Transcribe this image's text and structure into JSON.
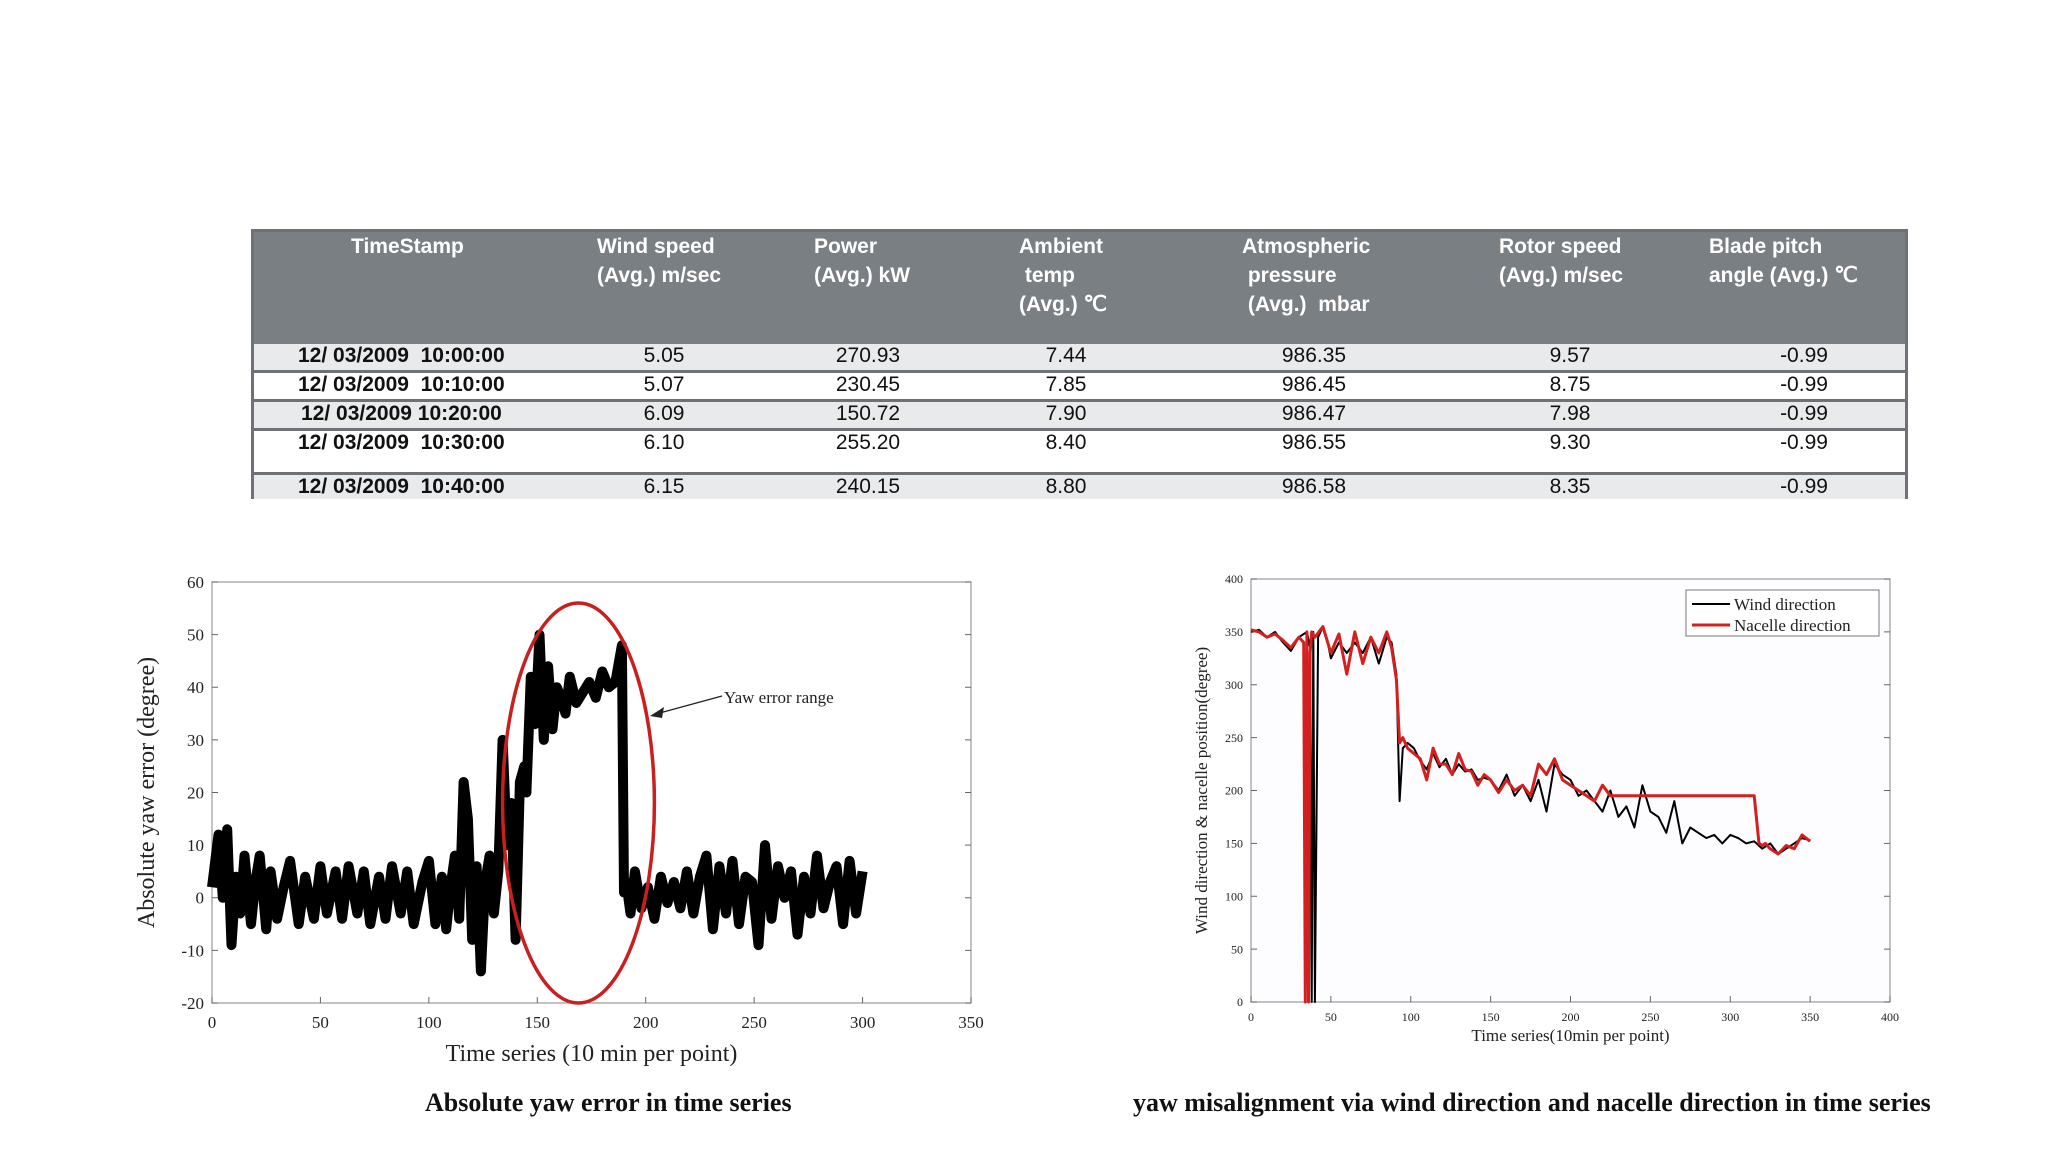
{
  "table": {
    "headers": [
      "TimeStamp",
      "Wind speed\n(Avg.) m/sec",
      "Power\n(Avg.) kW",
      "Ambient\n temp\n(Avg.) ℃",
      "Atmospheric\n pressure\n (Avg.)  mbar",
      "Rotor speed\n(Avg.) m/sec",
      "Blade pitch\nangle (Avg.) ℃"
    ],
    "rows": [
      [
        "12/ 03/2009  10:00:00",
        "5.05",
        "270.93",
        "7.44",
        "986.35",
        "9.57",
        "-0.99"
      ],
      [
        "12/ 03/2009  10:10:00",
        "5.07",
        "230.45",
        "7.85",
        "986.45",
        "8.75",
        "-0.99"
      ],
      [
        "12/ 03/2009 10:20:00",
        "6.09",
        "150.72",
        "7.90",
        "986.47",
        "7.98",
        "-0.99"
      ],
      [
        "12/ 03/2009  10:30:00",
        "6.10",
        "255.20",
        "8.40",
        "986.55",
        "9.30",
        "-0.99"
      ],
      [
        "12/ 03/2009  10:40:00",
        "6.15",
        "240.15",
        "8.80",
        "986.58",
        "8.35",
        "-0.99"
      ]
    ]
  },
  "chart_data": [
    {
      "type": "line",
      "title": "Absolute yaw error in time series",
      "xlabel": "Time series (10 min per point)",
      "ylabel": "Absolute yaw error (degree)",
      "xlim": [
        0,
        350
      ],
      "ylim": [
        -20,
        60
      ],
      "xticks": [
        "0",
        "50",
        "100",
        "150",
        "200",
        "250",
        "300",
        "350"
      ],
      "yticks": [
        "-20",
        "-10",
        "0",
        "10",
        "20",
        "30",
        "40",
        "50",
        "60"
      ],
      "annotation": "Yaw error range",
      "highlight_ellipse": {
        "x_center": 169,
        "y_center": 18,
        "x_radius": 35,
        "y_radius": 38
      },
      "series": [
        {
          "name": "Absolute yaw error",
          "color": "#000000",
          "x": [
            0,
            3,
            5,
            7,
            9,
            11,
            13,
            15,
            18,
            20,
            22,
            25,
            27,
            30,
            33,
            36,
            40,
            43,
            47,
            50,
            53,
            57,
            60,
            63,
            67,
            70,
            73,
            77,
            80,
            83,
            87,
            90,
            93,
            97,
            100,
            103,
            106,
            108,
            110,
            112,
            114,
            116,
            118,
            120,
            122,
            124,
            126,
            128,
            130,
            132,
            134,
            136,
            138,
            140,
            142,
            144,
            145,
            147,
            149,
            151,
            153,
            155,
            157,
            159,
            161,
            163,
            165,
            168,
            171,
            174,
            177,
            180,
            183,
            186,
            189,
            190,
            191,
            193,
            195,
            198,
            201,
            204,
            207,
            210,
            213,
            216,
            219,
            222,
            225,
            228,
            231,
            234,
            237,
            240,
            243,
            246,
            249,
            252,
            255,
            258,
            261,
            264,
            267,
            270,
            273,
            276,
            279,
            282,
            285,
            288,
            291,
            294,
            297,
            300
          ],
          "y": [
            2,
            12,
            0,
            13,
            -9,
            4,
            -3,
            8,
            -5,
            3,
            8,
            -6,
            5,
            -4,
            2,
            7,
            -5,
            4,
            -4,
            6,
            -3,
            5,
            -4,
            6,
            -3,
            5,
            -5,
            4,
            -4,
            6,
            -3,
            5,
            -5,
            3,
            7,
            -5,
            4,
            -6,
            2,
            8,
            -4,
            22,
            15,
            -8,
            6,
            -14,
            3,
            8,
            -3,
            5,
            30,
            10,
            18,
            -8,
            22,
            25,
            20,
            42,
            33,
            50,
            30,
            44,
            32,
            40,
            38,
            35,
            42,
            37,
            39,
            41,
            38,
            43,
            40,
            41,
            48,
            1,
            3,
            -3,
            5,
            -2,
            2,
            -4,
            4,
            -1,
            3,
            -2,
            5,
            -3,
            4,
            8,
            -6,
            6,
            -3,
            7,
            -5,
            4,
            3,
            -9,
            10,
            -4,
            6,
            0,
            5,
            -7,
            4,
            -3,
            8,
            -2,
            3,
            6,
            -5,
            7,
            -3,
            5
          ]
        }
      ]
    },
    {
      "type": "line",
      "title": "yaw misalignment via wind direction and nacelle direction in time series",
      "xlabel": "Time series(10min per point)",
      "ylabel": "Wind direction & nacelle position(degree)",
      "xlim": [
        0,
        400
      ],
      "ylim": [
        0,
        400
      ],
      "xticks": [
        "0",
        "50",
        "100",
        "150",
        "200",
        "250",
        "300",
        "350",
        "400"
      ],
      "yticks": [
        "0",
        "50",
        "100",
        "150",
        "200",
        "250",
        "300",
        "350",
        "400"
      ],
      "legend_position": "top-right",
      "series": [
        {
          "name": "Wind direction",
          "color": "#000000",
          "x": [
            0,
            5,
            10,
            15,
            20,
            25,
            30,
            35,
            37,
            38,
            39,
            40,
            42,
            45,
            48,
            50,
            55,
            60,
            65,
            70,
            75,
            80,
            85,
            88,
            91,
            93,
            95,
            98,
            102,
            106,
            110,
            114,
            118,
            122,
            126,
            130,
            134,
            138,
            142,
            146,
            150,
            155,
            160,
            165,
            170,
            175,
            180,
            185,
            190,
            195,
            200,
            205,
            210,
            215,
            220,
            225,
            230,
            235,
            240,
            245,
            250,
            255,
            260,
            265,
            270,
            275,
            280,
            285,
            290,
            295,
            300,
            305,
            310,
            315,
            320,
            325,
            330,
            335,
            340,
            345,
            350
          ],
          "y": [
            350,
            352,
            345,
            350,
            340,
            332,
            345,
            350,
            335,
            0,
            350,
            0,
            345,
            355,
            340,
            325,
            340,
            330,
            340,
            330,
            345,
            320,
            345,
            340,
            310,
            190,
            240,
            245,
            240,
            228,
            220,
            235,
            222,
            230,
            215,
            225,
            218,
            220,
            210,
            212,
            210,
            200,
            215,
            195,
            205,
            190,
            210,
            180,
            225,
            215,
            210,
            195,
            200,
            190,
            180,
            200,
            175,
            185,
            165,
            205,
            180,
            175,
            160,
            190,
            150,
            165,
            160,
            155,
            158,
            150,
            158,
            155,
            150,
            152,
            145,
            150,
            140,
            145,
            150,
            155,
            153
          ]
        },
        {
          "name": "Nacelle direction",
          "color": "#d41f1f",
          "x": [
            0,
            5,
            10,
            15,
            20,
            25,
            30,
            33,
            34,
            35,
            36,
            37,
            38,
            40,
            45,
            50,
            55,
            60,
            65,
            70,
            75,
            80,
            85,
            88,
            91,
            93,
            95,
            98,
            102,
            106,
            110,
            114,
            118,
            122,
            126,
            130,
            134,
            138,
            142,
            146,
            150,
            155,
            160,
            165,
            170,
            175,
            180,
            185,
            190,
            195,
            200,
            205,
            210,
            215,
            220,
            225,
            230,
            240,
            260,
            280,
            300,
            315,
            318,
            320,
            322,
            325,
            330,
            335,
            340,
            345,
            350
          ],
          "y": [
            352,
            350,
            345,
            348,
            342,
            335,
            345,
            340,
            0,
            350,
            0,
            330,
            350,
            345,
            355,
            330,
            348,
            310,
            350,
            320,
            345,
            330,
            350,
            335,
            305,
            245,
            250,
            240,
            235,
            230,
            210,
            240,
            225,
            225,
            215,
            235,
            220,
            218,
            205,
            215,
            210,
            198,
            210,
            200,
            205,
            195,
            225,
            215,
            230,
            210,
            205,
            200,
            195,
            190,
            205,
            195,
            195,
            195,
            195,
            195,
            195,
            195,
            150,
            148,
            150,
            145,
            140,
            148,
            145,
            158,
            152
          ]
        }
      ]
    }
  ]
}
